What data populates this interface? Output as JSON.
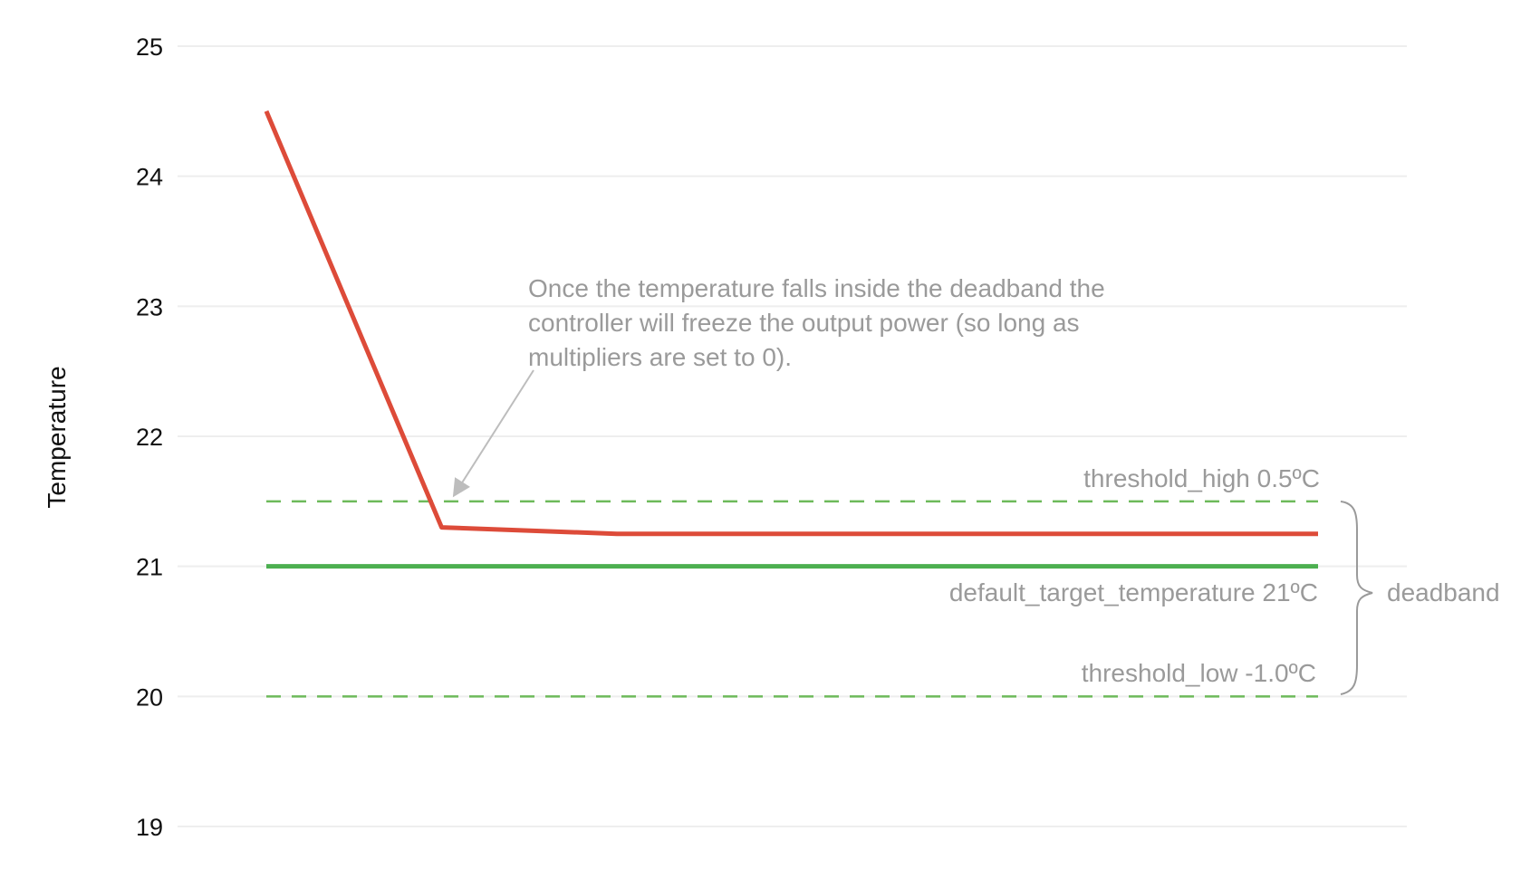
{
  "chart_data": {
    "type": "line",
    "title": "",
    "xlabel": "",
    "ylabel": "Temperature",
    "ylim": [
      19,
      25
    ],
    "yticks": [
      "25",
      "24",
      "23",
      "22",
      "21",
      "20",
      "19"
    ],
    "xlim": [
      0,
      6
    ],
    "grid": true,
    "colors": {
      "temperature": "#dd4b39",
      "target": "#4caf50",
      "threshold": "#6dba5a",
      "annotation": "#9a9a9a",
      "grid": "#eeeeee"
    },
    "series": [
      {
        "role": "temperature",
        "x": [
          0,
          1,
          2,
          6
        ],
        "y": [
          24.5,
          21.3,
          21.25,
          21.25
        ],
        "style": "solid"
      },
      {
        "role": "target",
        "x": [
          0,
          6
        ],
        "y": [
          21,
          21
        ],
        "style": "solid"
      },
      {
        "role": "threshold_high",
        "x": [
          0,
          6
        ],
        "y": [
          21.5,
          21.5
        ],
        "style": "dashed"
      },
      {
        "role": "threshold_low",
        "x": [
          0,
          6
        ],
        "y": [
          20,
          20
        ],
        "style": "dashed"
      }
    ],
    "annotations": {
      "note_lines": [
        "Once the temperature falls inside the deadband the",
        "controller will freeze the output power (so long as",
        "multipliers are set to 0)."
      ],
      "threshold_high": "threshold_high  0.5ºC",
      "target": "default_target_temperature  21ºC",
      "threshold_low": "threshold_low  -1.0ºC",
      "deadband": "deadband"
    }
  }
}
